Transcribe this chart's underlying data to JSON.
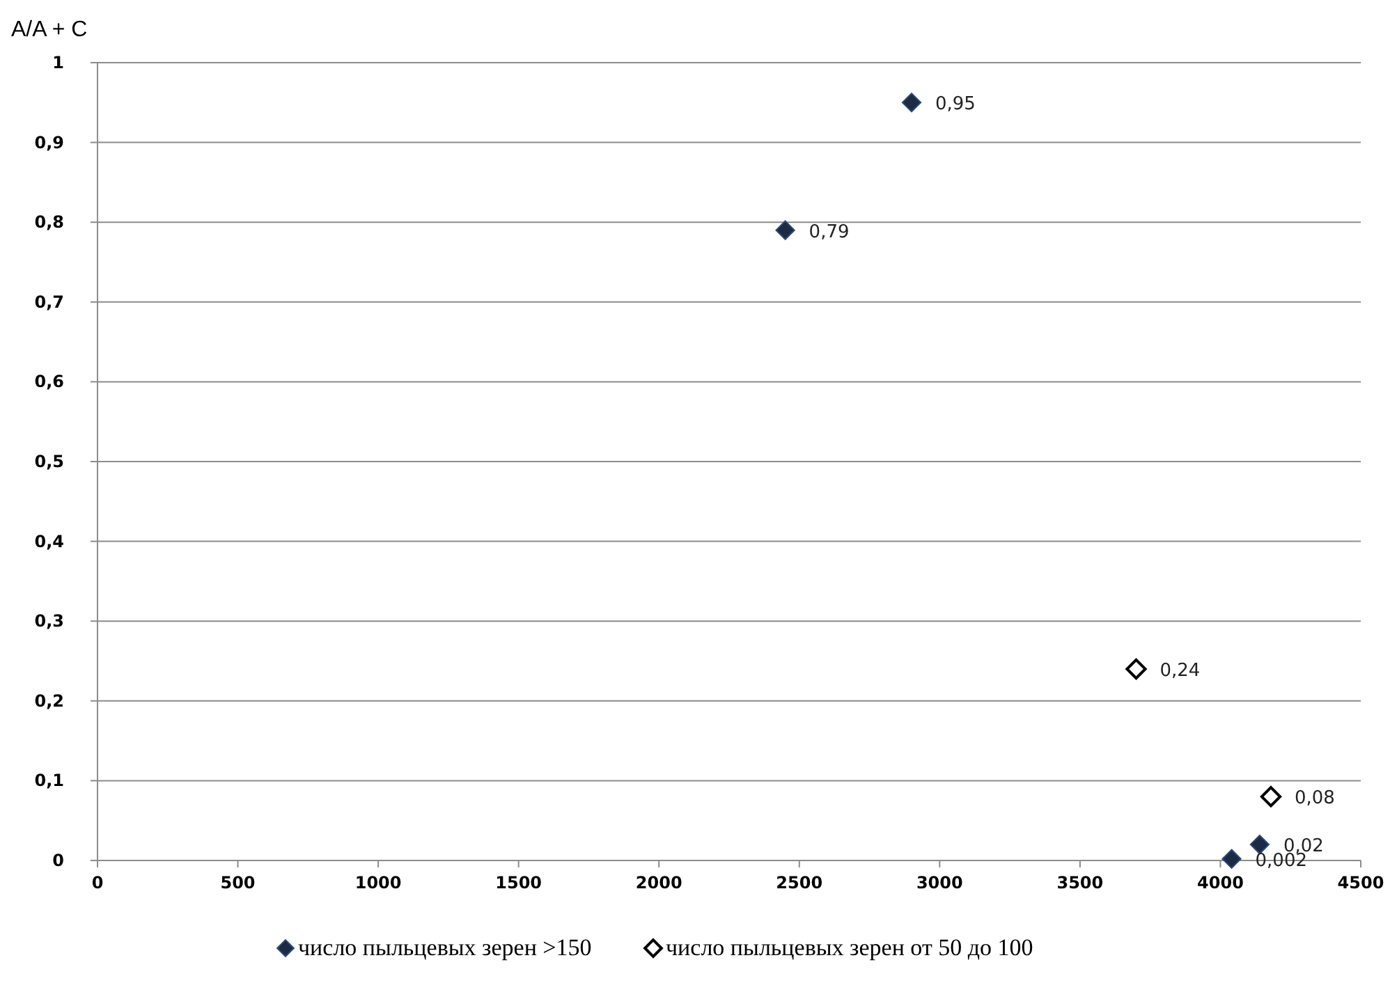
{
  "chart_data": {
    "type": "scatter",
    "ylabel": "A/A + C",
    "xlim": [
      0,
      4500
    ],
    "xticks": [
      0,
      500,
      1000,
      1500,
      2000,
      2500,
      3000,
      3500,
      4000,
      4500
    ],
    "ylim": [
      0,
      1
    ],
    "yticks": [
      {
        "value": 0,
        "label": "0"
      },
      {
        "value": 0.1,
        "label": "0,1"
      },
      {
        "value": 0.2,
        "label": "0,2"
      },
      {
        "value": 0.3,
        "label": "0,3"
      },
      {
        "value": 0.4,
        "label": "0,4"
      },
      {
        "value": 0.5,
        "label": "0,5"
      },
      {
        "value": 0.6,
        "label": "0,6"
      },
      {
        "value": 0.7,
        "label": "0,7"
      },
      {
        "value": 0.8,
        "label": "0,8"
      },
      {
        "value": 0.9,
        "label": "0,9"
      },
      {
        "value": 1,
        "label": "1"
      }
    ],
    "grid": "y",
    "legend": "bottom",
    "marker": "diamond",
    "series": [
      {
        "name": "число пыльцевых зерен >150",
        "color": "#1c2a44",
        "x": [
          2450,
          2900,
          4040,
          4140
        ],
        "values": [
          0.79,
          0.95,
          0.002,
          0.02
        ],
        "value_labels": [
          "0,79",
          "0,95",
          "0,002",
          "0,02"
        ]
      },
      {
        "name": "число пыльцевых зерен от 50 до 100",
        "color": "#000000",
        "x": [
          3700,
          4180
        ],
        "values": [
          0.24,
          0.08
        ],
        "value_labels": [
          "0,24",
          "0,08"
        ]
      }
    ]
  }
}
